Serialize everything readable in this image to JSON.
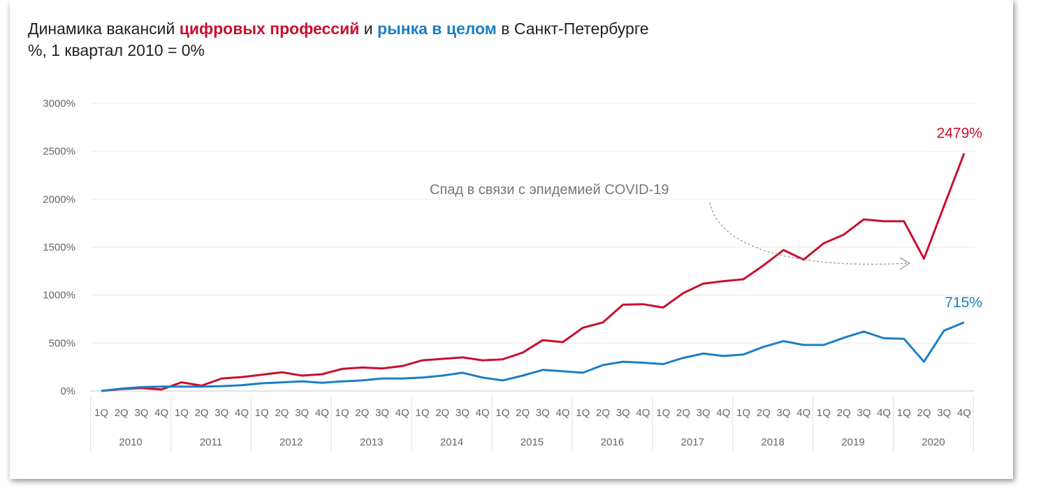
{
  "chart_data": {
    "type": "line",
    "title_parts": {
      "prefix": "Динамика вакансий ",
      "digital": "цифровых профессий",
      "middle": " и ",
      "market": "рынка в целом",
      "suffix": " в Санкт-Петербурге"
    },
    "subtitle": "%, 1 квартал 2010 = 0%",
    "ylim": [
      0,
      3000
    ],
    "yticks": [
      0,
      500,
      1000,
      1500,
      2000,
      2500,
      3000
    ],
    "ytick_labels": [
      "0%",
      "500%",
      "1000%",
      "1500%",
      "2000%",
      "2500%",
      "3000%"
    ],
    "grid": true,
    "quarters": [
      "1Q",
      "2Q",
      "3Q",
      "4Q"
    ],
    "years": [
      "2010",
      "2011",
      "2012",
      "2013",
      "2014",
      "2015",
      "2016",
      "2017",
      "2018",
      "2019",
      "2020"
    ],
    "series": [
      {
        "key": "digital",
        "color": "#c8102e",
        "end_label": "2479%",
        "values": [
          0,
          20,
          30,
          15,
          90,
          55,
          130,
          145,
          170,
          195,
          160,
          175,
          230,
          245,
          235,
          260,
          320,
          335,
          350,
          320,
          330,
          400,
          530,
          510,
          660,
          715,
          900,
          905,
          870,
          1020,
          1120,
          1145,
          1165,
          1310,
          1470,
          1370,
          1540,
          1630,
          1790,
          1770,
          1770,
          1380,
          1930,
          2479
        ]
      },
      {
        "key": "market",
        "color": "#1b7fc4",
        "end_label": "715%",
        "values": [
          0,
          25,
          40,
          45,
          45,
          45,
          50,
          60,
          80,
          90,
          100,
          85,
          100,
          110,
          130,
          130,
          140,
          160,
          190,
          140,
          110,
          160,
          220,
          205,
          190,
          270,
          305,
          295,
          280,
          345,
          390,
          365,
          380,
          460,
          520,
          480,
          480,
          555,
          620,
          550,
          545,
          305,
          630,
          715
        ]
      }
    ],
    "annotation": "Спад в связи с эпидемией COVID-19",
    "annotation_color": "#777777"
  }
}
